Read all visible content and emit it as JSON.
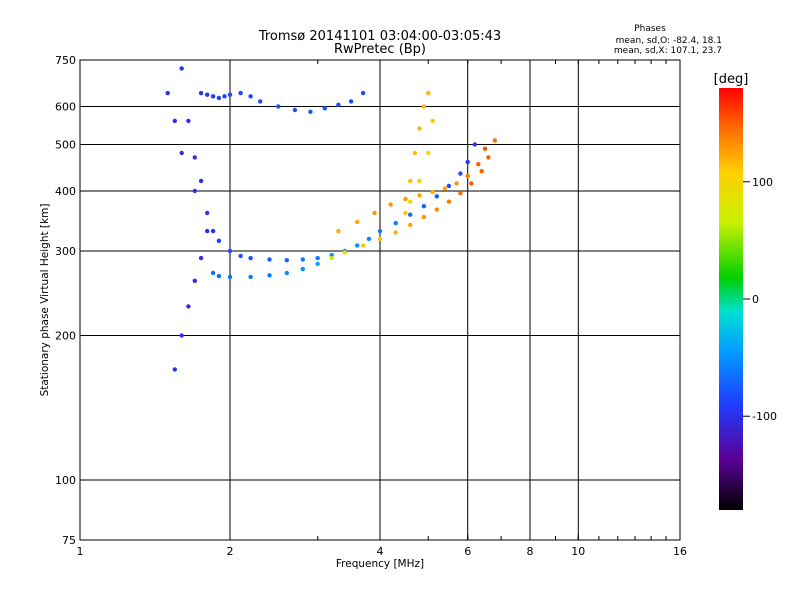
{
  "chart_data": {
    "type": "scatter",
    "title": "Tromsø 20141101 03:04:00-03:05:43",
    "subtitle": "RwPretec (Bp)",
    "xlabel": "Frequency [MHz]",
    "ylabel": "Stationary phase Virtual Height [km]",
    "x_scale": "log",
    "y_scale": "log",
    "xlim": [
      1,
      16
    ],
    "ylim": [
      75,
      750
    ],
    "x_ticks": [
      1,
      2,
      4,
      6,
      8,
      10,
      16
    ],
    "y_ticks": [
      75,
      100,
      200,
      300,
      400,
      500,
      600,
      750
    ],
    "x_grid": [
      2,
      4,
      6,
      8,
      10
    ],
    "y_grid": [
      100,
      200,
      300,
      400,
      500,
      600
    ],
    "grid": true,
    "legend": {
      "title": "Phases",
      "lines": [
        "mean, sd,O: -82.4, 18.1",
        "mean, sd,X: 107.1, 23.7"
      ],
      "placement": "top-right"
    },
    "colorbar": {
      "label": "[deg]",
      "range": [
        -180,
        180
      ],
      "ticks": [
        100,
        0,
        -100
      ],
      "placement": "right"
    },
    "traces": [
      {
        "name": "",
        "x": [
          1.6,
          1.65,
          1.7,
          1.75,
          1.8,
          1.85,
          1.9,
          2.0,
          2.1,
          2.2,
          2.4,
          2.6,
          2.8,
          3.0,
          3.2,
          3.4,
          3.6,
          3.8,
          4.0,
          4.3,
          4.6,
          4.9,
          5.2,
          5.5,
          5.8,
          6.0,
          6.2
        ],
        "y": [
          720,
          560,
          470,
          420,
          360,
          330,
          315,
          300,
          293,
          290,
          288,
          287,
          288,
          290,
          294,
          300,
          308,
          318,
          330,
          343,
          357,
          372,
          390,
          410,
          435,
          460,
          500
        ],
        "phase": [
          -95,
          -100,
          -100,
          -100,
          -95,
          -95,
          -90,
          -85,
          -80,
          -78,
          -75,
          -70,
          -65,
          -60,
          -55,
          -50,
          -50,
          -55,
          -60,
          -60,
          -65,
          -70,
          -75,
          -80,
          -85,
          -90,
          -95
        ]
      },
      {
        "name": "",
        "x": [
          1.85,
          1.9,
          2.0,
          2.2,
          2.4,
          2.6,
          2.8,
          3.0,
          3.2,
          3.4,
          3.7,
          4.0,
          4.3,
          4.6,
          4.9,
          5.2,
          5.5,
          5.8,
          6.1,
          6.4,
          6.6,
          6.8
        ],
        "y": [
          270,
          266,
          265,
          265,
          267,
          270,
          275,
          282,
          290,
          298,
          308,
          318,
          328,
          340,
          353,
          366,
          380,
          396,
          415,
          440,
          470,
          510
        ],
        "phase": [
          -70,
          -68,
          -65,
          -62,
          -60,
          -55,
          -50,
          -40,
          70,
          100,
          110,
          115,
          120,
          125,
          130,
          135,
          140,
          145,
          150,
          150,
          150,
          145
        ]
      },
      {
        "name": "",
        "x": [
          3.3,
          3.6,
          3.9,
          4.2,
          4.5,
          4.8,
          5.1,
          5.4,
          5.7,
          6.0,
          6.3,
          6.5
        ],
        "y": [
          330,
          345,
          360,
          375,
          385,
          392,
          398,
          405,
          415,
          430,
          455,
          490
        ],
        "phase": [
          120,
          125,
          130,
          130,
          128,
          125,
          120,
          125,
          130,
          140,
          150,
          155
        ]
      },
      {
        "name": "",
        "x": [
          1.75,
          1.8,
          1.85,
          1.9,
          1.95,
          2.0,
          2.1,
          2.2,
          2.3,
          2.5,
          2.7,
          2.9,
          3.1,
          3.3,
          3.5,
          3.7
        ],
        "y": [
          640,
          635,
          630,
          625,
          630,
          635,
          640,
          630,
          615,
          600,
          590,
          585,
          595,
          605,
          615,
          640
        ],
        "phase": [
          -95,
          -92,
          -90,
          -90,
          -88,
          -85,
          -85,
          -85,
          -82,
          -80,
          -80,
          -78,
          -78,
          -80,
          -82,
          -85
        ]
      },
      {
        "name": "",
        "x": [
          4.5,
          4.6,
          4.7,
          4.8,
          4.9,
          5.0,
          5.1,
          5.0,
          4.8,
          4.6
        ],
        "y": [
          360,
          420,
          480,
          540,
          600,
          640,
          560,
          480,
          420,
          380
        ],
        "phase": [
          110,
          112,
          115,
          118,
          120,
          118,
          112,
          108,
          105,
          100
        ]
      },
      {
        "name": "",
        "x": [
          1.55,
          1.6,
          1.65,
          1.7,
          1.75,
          1.8,
          1.7,
          1.6,
          1.55,
          1.5
        ],
        "y": [
          170,
          200,
          230,
          260,
          290,
          330,
          400,
          480,
          560,
          640
        ],
        "phase": [
          -95,
          -97,
          -100,
          -102,
          -100,
          -98,
          -100,
          -102,
          -100,
          -98
        ]
      }
    ]
  }
}
